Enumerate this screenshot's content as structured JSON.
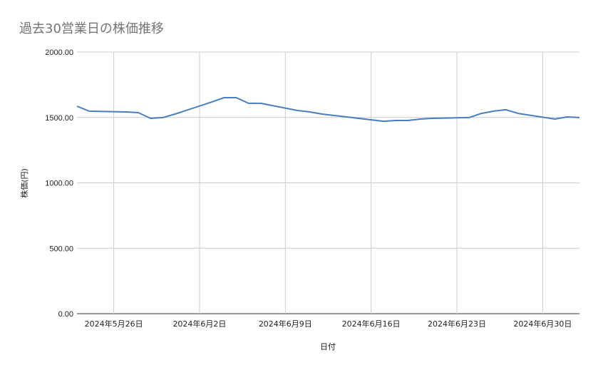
{
  "chart_data": {
    "type": "line",
    "title": "過去30営業日の株価推移",
    "xlabel": "日付",
    "ylabel": "株価(円)",
    "ylim": [
      0,
      2000
    ],
    "yticks": [
      "0.00",
      "500.00",
      "1000.00",
      "1500.00",
      "2000.00"
    ],
    "xlim": [
      "2024-05-23",
      "2024-07-03"
    ],
    "xticks": [
      {
        "date": "2024-05-26",
        "label": "2024年5月26日"
      },
      {
        "date": "2024-06-02",
        "label": "2024年6月2日"
      },
      {
        "date": "2024-06-09",
        "label": "2024年6月9日"
      },
      {
        "date": "2024-06-16",
        "label": "2024年6月16日"
      },
      {
        "date": "2024-06-23",
        "label": "2024年6月23日"
      },
      {
        "date": "2024-06-30",
        "label": "2024年6月30日"
      }
    ],
    "grid": true,
    "color": "#4a7ebb",
    "x": [
      "2024-05-23",
      "2024-05-24",
      "2024-05-27",
      "2024-05-28",
      "2024-05-29",
      "2024-05-30",
      "2024-05-31",
      "2024-06-03",
      "2024-06-04",
      "2024-06-05",
      "2024-06-06",
      "2024-06-07",
      "2024-06-10",
      "2024-06-11",
      "2024-06-12",
      "2024-06-13",
      "2024-06-14",
      "2024-06-17",
      "2024-06-18",
      "2024-06-19",
      "2024-06-20",
      "2024-06-21",
      "2024-06-24",
      "2024-06-25",
      "2024-06-26",
      "2024-06-27",
      "2024-06-28",
      "2024-07-01",
      "2024-07-02",
      "2024-07-03"
    ],
    "values": [
      1586,
      1548,
      1542,
      1537,
      1493,
      1499,
      1526,
      1618,
      1651,
      1651,
      1608,
      1608,
      1553,
      1542,
      1526,
      1515,
      1504,
      1471,
      1477,
      1477,
      1488,
      1493,
      1499,
      1531,
      1548,
      1559,
      1531,
      1488,
      1504,
      1499
    ]
  }
}
